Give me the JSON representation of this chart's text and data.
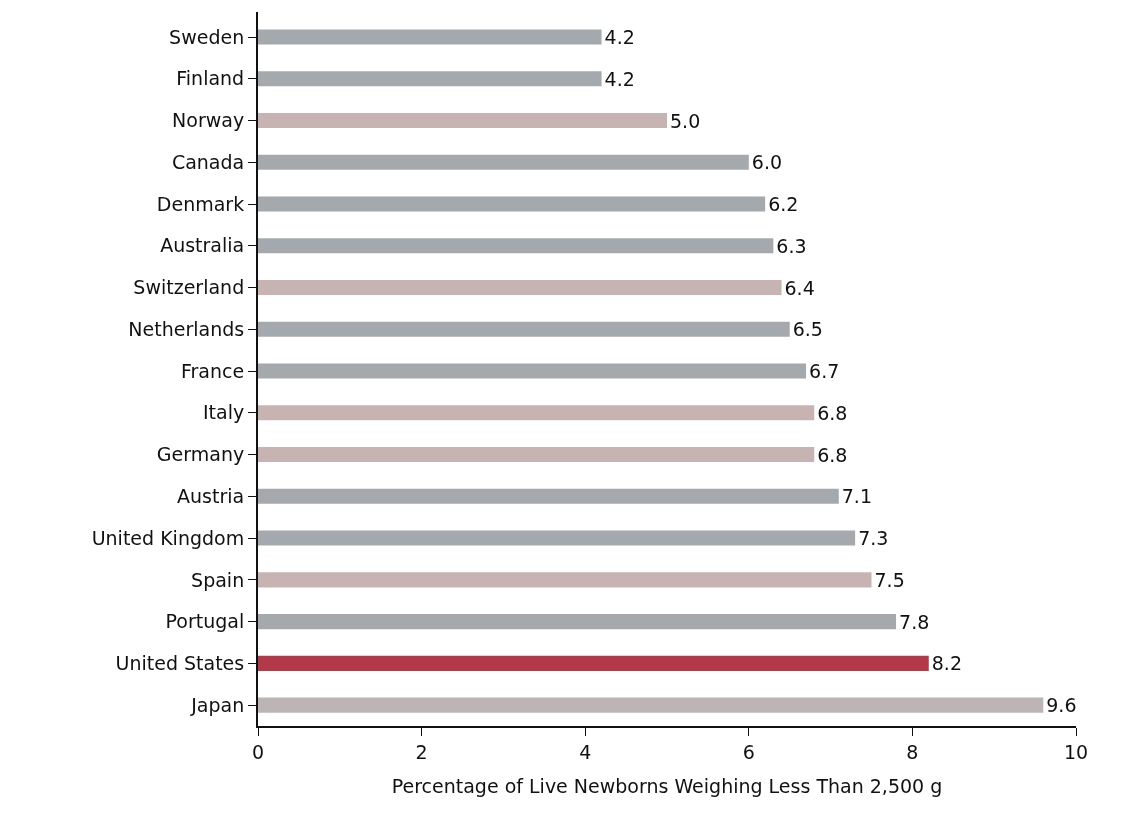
{
  "chart_data": {
    "type": "bar",
    "orientation": "horizontal",
    "xlabel": "Percentage of Live Newborns Weighing Less Than 2,500 g",
    "categories": [
      "Sweden",
      "Finland",
      "Norway",
      "Canada",
      "Denmark",
      "Australia",
      "Switzerland",
      "Netherlands",
      "France",
      "Italy",
      "Germany",
      "Austria",
      "United Kingdom",
      "Spain",
      "Portugal",
      "United States",
      "Japan"
    ],
    "values": [
      4.2,
      4.2,
      5.0,
      6.0,
      6.2,
      6.3,
      6.4,
      6.5,
      6.7,
      6.8,
      6.8,
      7.1,
      7.3,
      7.5,
      7.8,
      8.2,
      9.6
    ],
    "value_labels": [
      "4.2",
      "4.2",
      "5.0",
      "6.0",
      "6.2",
      "6.3",
      "6.4",
      "6.5",
      "6.7",
      "6.8",
      "6.8",
      "7.1",
      "7.3",
      "7.5",
      "7.8",
      "8.2",
      "9.6"
    ],
    "colors": [
      "#a4a9ae",
      "#a4a9ae",
      "#c8b3b3",
      "#a4a9ae",
      "#a4a9ae",
      "#a4a9ae",
      "#c8b3b3",
      "#a4a9ae",
      "#a4a9ae",
      "#c8b3b3",
      "#c8b3b3",
      "#a4a9ae",
      "#a4a9ae",
      "#c8b3b3",
      "#a4a9ae",
      "#b23a48",
      "#bdb4b4"
    ],
    "xlim": [
      0,
      10
    ],
    "xticks": [
      0,
      2,
      4,
      6,
      8,
      10
    ],
    "grid": false
  }
}
